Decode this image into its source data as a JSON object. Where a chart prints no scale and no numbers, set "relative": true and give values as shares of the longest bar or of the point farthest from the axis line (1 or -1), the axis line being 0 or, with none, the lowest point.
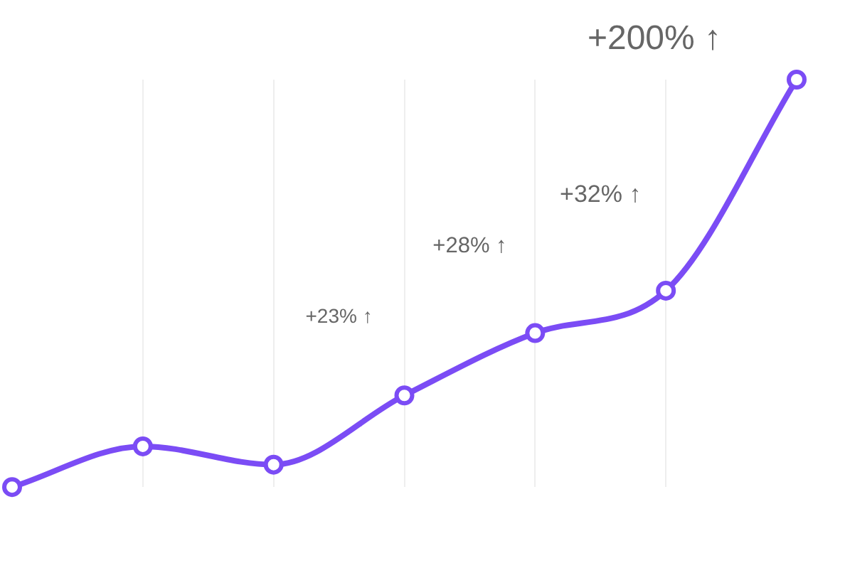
{
  "chart_data": {
    "type": "line",
    "relative": true,
    "categories": [
      null,
      null,
      null,
      null,
      null,
      null,
      null
    ],
    "series": [
      {
        "color": "#7b4cf5",
        "values": [
          0,
          0.1,
          0.055,
          0.225,
          0.378,
          0.482,
          1
        ]
      }
    ],
    "annotations": [
      "+23% ↑",
      "+28% ↑",
      "+32% ↑",
      "+200% ↑"
    ],
    "marker": "circle",
    "line_style": "solid",
    "grid": "x",
    "legend": false
  }
}
